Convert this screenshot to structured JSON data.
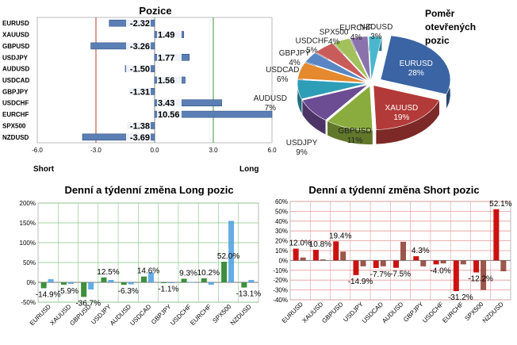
{
  "chart_data": [
    {
      "type": "bar",
      "orientation": "horizontal",
      "title": "Pozice",
      "categories": [
        "EURUSD",
        "XAUUSD",
        "GBPUSD",
        "USDJPY",
        "AUDUSD",
        "USDCAD",
        "GBPJPY",
        "USDCHF",
        "EURCHF",
        "SPX500",
        "NZDUSD"
      ],
      "values": [
        -2.32,
        1.49,
        -3.26,
        1.77,
        -1.5,
        1.56,
        -1.31,
        3.43,
        10.56,
        -1.38,
        -3.69
      ],
      "value_labels": [
        "-2.32",
        "1.49",
        "-3.26",
        "1.77",
        "-1.50",
        "1.56",
        "-1.31",
        "3.43",
        "10.56",
        "-1.38",
        "-3.69"
      ],
      "xlim": [
        -6,
        6
      ],
      "xticks": [
        "-6.0",
        "-3.0",
        "0.0",
        "3.0",
        "6.0"
      ],
      "left_label": "Short",
      "right_label": "Long",
      "colors": {
        "bar": "#5b7fb5",
        "line_minus": "#c0392b",
        "line_plus": "#3c9a3c"
      }
    },
    {
      "type": "pie",
      "title": "Poměr otevřených pozic",
      "title_lines": [
        "Poměr",
        "otevřených",
        "pozic"
      ],
      "slices": [
        {
          "label": "EURUSD",
          "pct": "28%",
          "value": 28,
          "color": "#3a64a3"
        },
        {
          "label": "XAUUSD",
          "pct": "19%",
          "value": 19,
          "color": "#b23a38"
        },
        {
          "label": "GBPUSD",
          "pct": "11%",
          "value": 11,
          "color": "#8aac3e"
        },
        {
          "label": "USDJPY",
          "pct": "9%",
          "value": 9,
          "color": "#6c4c92"
        },
        {
          "label": "AUDUSD",
          "pct": "7%",
          "value": 7,
          "color": "#2e9db8"
        },
        {
          "label": "USDCAD",
          "pct": "6%",
          "value": 6,
          "color": "#e5892e"
        },
        {
          "label": "GBPJPY",
          "pct": "4%",
          "value": 4,
          "color": "#5a86c4"
        },
        {
          "label": "USDCHF",
          "pct": "5%",
          "value": 5,
          "color": "#c75c5a"
        },
        {
          "label": "SPX500",
          "pct": "4%",
          "value": 4,
          "color": "#a2c15c"
        },
        {
          "label": "EURCHF",
          "pct": "4%",
          "value": 4,
          "color": "#8a73ab"
        },
        {
          "label": "NZDUSD",
          "pct": "3%",
          "value": 3,
          "color": "#4bb7cf"
        }
      ]
    },
    {
      "type": "bar",
      "title_parts": [
        "Denní",
        " a ",
        "týdenní",
        " změna Long pozic"
      ],
      "title_colors": [
        "#3a9a3a",
        "#000000",
        "#2aa7e0",
        "#000000"
      ],
      "categories": [
        "EURUSD",
        "XAUUSD",
        "GBPUSD",
        "USDJPY",
        "AUDUSD",
        "USDCAD",
        "GBPJPY",
        "USDCHF",
        "EURCHF",
        "SPX500",
        "NZDUSD"
      ],
      "series": [
        {
          "values": [
            -14.9,
            -5.9,
            -36.7,
            12.5,
            -6.3,
            14.6,
            -1.1,
            9.3,
            10.2,
            52.0,
            -13.1
          ],
          "color": "#3c8f3c"
        },
        {
          "values": [
            8,
            -4,
            -18,
            6,
            -5,
            25,
            -2,
            1,
            -6,
            155,
            6
          ],
          "color": "#4a9fe0"
        }
      ],
      "data_labels": [
        "-14.9%",
        "-5.9%",
        "-36.7%",
        "12.5%",
        "-6.3%",
        "14.6%",
        "-1.1%",
        "9.3%",
        "10.2%",
        "52.0%",
        "-13.1%"
      ],
      "ylim": [
        -50,
        200
      ],
      "yticks": [
        "-50%",
        "0%",
        "50%",
        "100%",
        "150%",
        "200%"
      ]
    },
    {
      "type": "bar",
      "title_parts": [
        "Denní",
        " a ",
        "týdenní",
        " změna Short pozic"
      ],
      "title_colors": [
        "#cc1f1f",
        "#000000",
        "#a85a3a",
        "#000000"
      ],
      "categories": [
        "EURUSD",
        "XAUUSD",
        "GBPUSD",
        "USDJPY",
        "USDCAD",
        "AUDUSD",
        "GBPJPY",
        "USDCHF",
        "EURCHF",
        "SPX500",
        "NZDUSD"
      ],
      "series": [
        {
          "values": [
            12.0,
            10.8,
            19.4,
            -14.9,
            -7.7,
            -7.5,
            4.3,
            -4.0,
            -31.2,
            -12.2,
            52.1
          ],
          "color": "#cc1111"
        },
        {
          "values": [
            3,
            1,
            9,
            -6,
            -6,
            19,
            -6,
            -3,
            -4,
            -30,
            -11
          ],
          "color": "#8a3a2a"
        }
      ],
      "data_labels": [
        "12.0%",
        "10.8%",
        "19.4%",
        "-14.9%",
        "-7.7%",
        "-7.5%",
        "4.3%",
        "-4.0%",
        "-31.2%",
        "-12.2%",
        "52.1%"
      ],
      "ylim": [
        -40,
        60
      ],
      "yticks": [
        "-40%",
        "-30%",
        "-20%",
        "-10%",
        "0%",
        "10%",
        "20%",
        "30%",
        "40%",
        "50%",
        "60%"
      ]
    }
  ]
}
